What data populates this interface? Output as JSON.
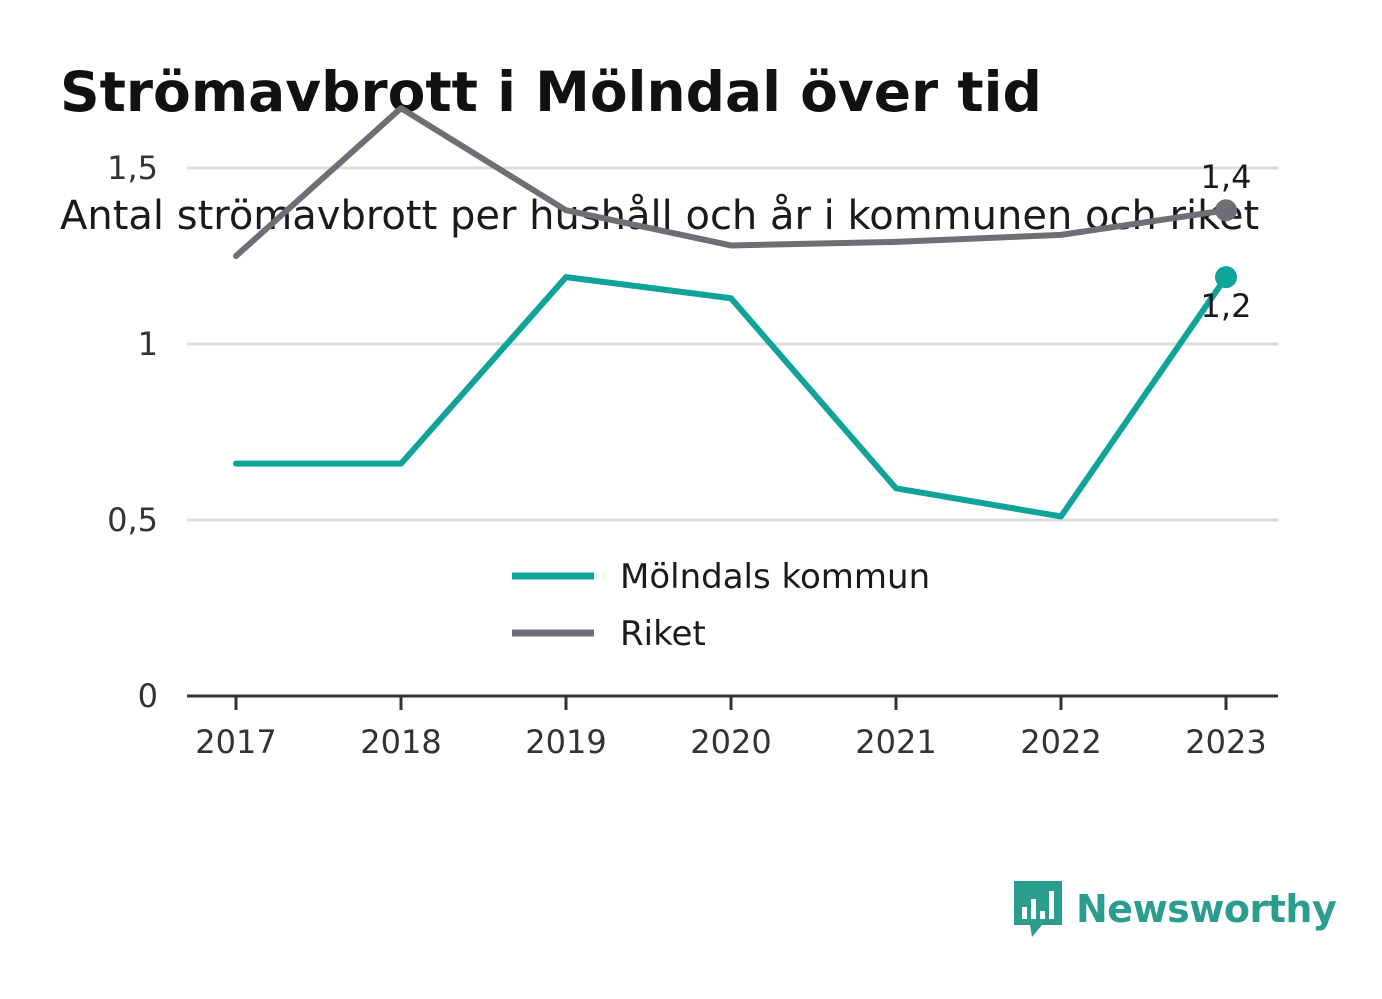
{
  "title": "Strömavbrott i Mölndal över tid",
  "subtitle": "Antal strömavbrott per hushåll och år i kommunen och riket",
  "brand": {
    "name": "Newsworthy",
    "logo_icon": "bar-chart-speech-bubble-icon",
    "color": "#2a9d8f"
  },
  "chart_data": {
    "type": "line",
    "x": [
      "2017",
      "2018",
      "2019",
      "2020",
      "2021",
      "2022",
      "2023"
    ],
    "series": [
      {
        "name": "Mölndals kommun",
        "color": "#0fa39a",
        "values": [
          0.66,
          0.66,
          1.19,
          1.13,
          0.59,
          0.51,
          1.19
        ]
      },
      {
        "name": "Riket",
        "color": "#6f6d76",
        "values": [
          1.25,
          1.67,
          1.38,
          1.28,
          1.29,
          1.31,
          1.38
        ]
      }
    ],
    "yticks": [
      {
        "value": 0,
        "label": "0"
      },
      {
        "value": 0.5,
        "label": "0,5"
      },
      {
        "value": 1,
        "label": "1"
      },
      {
        "value": 1.5,
        "label": "1,5"
      }
    ],
    "ylim": [
      0,
      1.7
    ],
    "end_labels": [
      {
        "series": "Riket",
        "text": "1,4",
        "position": "above"
      },
      {
        "series": "Mölndals kommun",
        "text": "1,2",
        "position": "below"
      }
    ],
    "legend_position": "center",
    "grid": true
  }
}
